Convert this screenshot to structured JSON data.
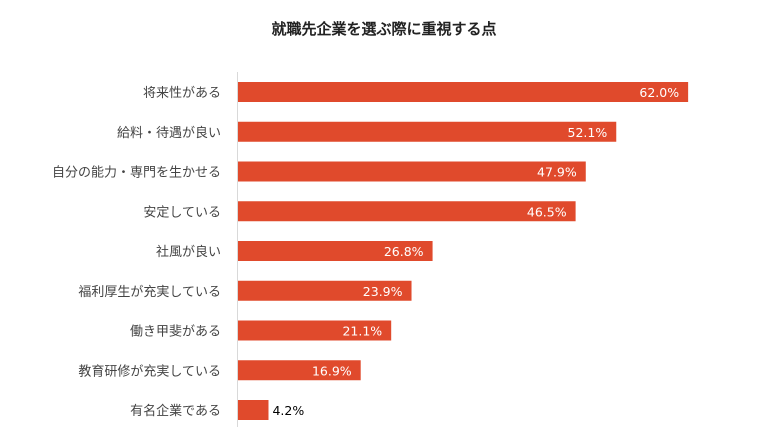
{
  "chart_data": {
    "type": "bar",
    "orientation": "horizontal",
    "title": "就職先企業を選ぶ際に重視する点",
    "categories": [
      "将来性がある",
      "給料・待遇が良い",
      "自分の能力・専門を生かせる",
      "安定している",
      "社風が良い",
      "福利厚生が充実している",
      "働き甲斐がある",
      "教育研修が充実している",
      "有名企業である"
    ],
    "values": [
      62.0,
      52.1,
      47.9,
      46.5,
      26.8,
      23.9,
      21.1,
      16.9,
      4.2
    ],
    "value_labels": [
      "62.0%",
      "52.1%",
      "47.9%",
      "46.5%",
      "26.8%",
      "23.9%",
      "21.1%",
      "16.9%",
      "4.2%"
    ],
    "xlim": [
      0,
      73
    ],
    "grid": false,
    "legend": "none",
    "bar_color": "#e04a2c",
    "axis_color": "#d9d9d9",
    "label_color_inside": "#ffffff",
    "label_color_outside": "#000000"
  }
}
